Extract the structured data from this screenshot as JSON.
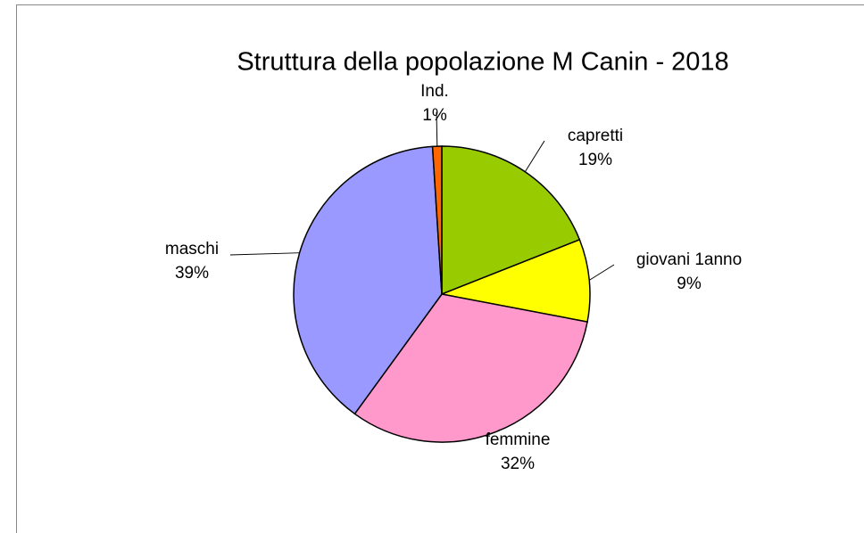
{
  "chart_data": {
    "type": "pie",
    "title": "Struttura della popolazione M Canin - 2018",
    "categories": [
      "capretti",
      "giovani 1anno",
      "femmine",
      "maschi",
      "Ind."
    ],
    "values": [
      19,
      9,
      32,
      39,
      1
    ],
    "value_labels": [
      "19%",
      "9%",
      "32%",
      "39%",
      "1%"
    ],
    "colors": [
      "#99cc00",
      "#ffff00",
      "#ff99cc",
      "#9999ff",
      "#ff6600"
    ]
  }
}
